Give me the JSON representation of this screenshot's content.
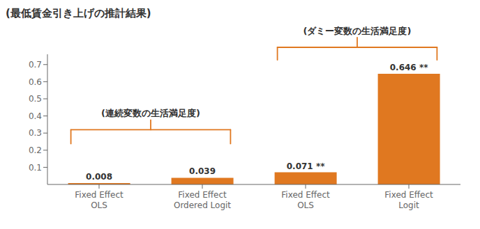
{
  "chart_data": {
    "type": "bar",
    "title": "(最低賃金引き上げの推計結果)",
    "categories": [
      "Fixed Effect\nOLS",
      "Fixed Effect\nOrdered Logit",
      "Fixed Effect\nOLS",
      "Fixed Effect\nLogit"
    ],
    "values": [
      0.008,
      0.039,
      0.071,
      0.646
    ],
    "value_labels": [
      "0.008",
      "0.039",
      "0.071 **",
      "0.646 **"
    ],
    "data_labels": true,
    "color": "#E07820",
    "ylim": [
      0,
      0.76
    ],
    "yticks": [
      0.1,
      0.2,
      0.3,
      0.4,
      0.5,
      0.6,
      0.7
    ],
    "grid": false,
    "annotations": [
      "(連続変数の生活満足度)",
      "(ダミー変数の生活満足度)"
    ]
  }
}
